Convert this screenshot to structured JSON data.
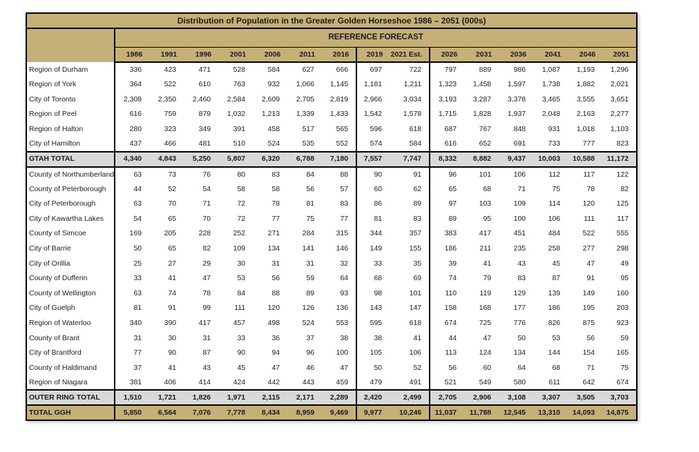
{
  "title": "Distribution of Population in the Greater Golden Horseshoe 1986 – 2051 (000s)",
  "forecast_header": "REFERENCE FORECAST",
  "years": [
    "1986",
    "1991",
    "1996",
    "2001",
    "2006",
    "2011",
    "2016",
    "2019",
    "2021 Est.",
    "2026",
    "2031",
    "2036",
    "2041",
    "2046",
    "2051"
  ],
  "colors": {
    "header_tan": "#C5B078",
    "total_gray": "#D9D9D9",
    "border": "#000000"
  },
  "sections": [
    {
      "name": "GTAH",
      "rows": [
        {
          "label": "Region of Durham",
          "values": [
            "336",
            "423",
            "471",
            "528",
            "584",
            "627",
            "666",
            "697",
            "722",
            "797",
            "889",
            "986",
            "1,087",
            "1,193",
            "1,296"
          ]
        },
        {
          "label": "Region of York",
          "values": [
            "364",
            "522",
            "610",
            "763",
            "932",
            "1,066",
            "1,145",
            "1,181",
            "1,211",
            "1,323",
            "1,458",
            "1,597",
            "1,738",
            "1,882",
            "2,021"
          ]
        },
        {
          "label": "City of Toronto",
          "values": [
            "2,308",
            "2,350",
            "2,460",
            "2,584",
            "2,609",
            "2,705",
            "2,819",
            "2,966",
            "3,034",
            "3,193",
            "3,287",
            "3,378",
            "3,465",
            "3,555",
            "3,651"
          ]
        },
        {
          "label": "Region of Peel",
          "values": [
            "616",
            "759",
            "879",
            "1,032",
            "1,213",
            "1,339",
            "1,433",
            "1,542",
            "1,578",
            "1,715",
            "1,828",
            "1,937",
            "2,048",
            "2,163",
            "2,277"
          ]
        },
        {
          "label": "Region of Halton",
          "values": [
            "280",
            "323",
            "349",
            "391",
            "458",
            "517",
            "565",
            "596",
            "618",
            "687",
            "767",
            "848",
            "931",
            "1,018",
            "1,103"
          ]
        },
        {
          "label": "City of Hamilton",
          "values": [
            "437",
            "466",
            "481",
            "510",
            "524",
            "535",
            "552",
            "574",
            "584",
            "616",
            "652",
            "691",
            "733",
            "777",
            "823"
          ]
        }
      ],
      "total": {
        "label": "GTAH TOTAL",
        "values": [
          "4,340",
          "4,843",
          "5,250",
          "5,807",
          "6,320",
          "6,788",
          "7,180",
          "7,557",
          "7,747",
          "8,332",
          "8,882",
          "9,437",
          "10,003",
          "10,588",
          "11,172"
        ]
      }
    },
    {
      "name": "Outer Ring",
      "rows": [
        {
          "label": "County of Northumberland",
          "values": [
            "63",
            "73",
            "76",
            "80",
            "83",
            "84",
            "88",
            "90",
            "91",
            "96",
            "101",
            "106",
            "112",
            "117",
            "122"
          ]
        },
        {
          "label": "County of Peterborough",
          "values": [
            "44",
            "52",
            "54",
            "58",
            "58",
            "56",
            "57",
            "60",
            "62",
            "65",
            "68",
            "71",
            "75",
            "78",
            "82"
          ]
        },
        {
          "label": "City of Peterborough",
          "values": [
            "63",
            "70",
            "71",
            "72",
            "78",
            "81",
            "83",
            "86",
            "89",
            "97",
            "103",
            "109",
            "114",
            "120",
            "125"
          ]
        },
        {
          "label": "City of Kawartha Lakes",
          "values": [
            "54",
            "65",
            "70",
            "72",
            "77",
            "75",
            "77",
            "81",
            "83",
            "89",
            "95",
            "100",
            "106",
            "111",
            "117"
          ]
        },
        {
          "label": "County of Simcoe",
          "values": [
            "169",
            "205",
            "228",
            "252",
            "271",
            "284",
            "315",
            "344",
            "357",
            "383",
            "417",
            "451",
            "484",
            "522",
            "555"
          ]
        },
        {
          "label": "City of Barrie",
          "values": [
            "50",
            "65",
            "82",
            "109",
            "134",
            "141",
            "146",
            "149",
            "155",
            "186",
            "211",
            "235",
            "258",
            "277",
            "298"
          ]
        },
        {
          "label": "City of Orillia",
          "values": [
            "25",
            "27",
            "29",
            "30",
            "31",
            "31",
            "32",
            "33",
            "35",
            "39",
            "41",
            "43",
            "45",
            "47",
            "49"
          ]
        },
        {
          "label": "County of Dufferin",
          "values": [
            "33",
            "41",
            "47",
            "53",
            "56",
            "59",
            "64",
            "68",
            "69",
            "74",
            "79",
            "83",
            "87",
            "91",
            "95"
          ]
        },
        {
          "label": "County of Wellington",
          "values": [
            "63",
            "74",
            "78",
            "84",
            "88",
            "89",
            "93",
            "98",
            "101",
            "110",
            "119",
            "129",
            "139",
            "149",
            "160"
          ]
        },
        {
          "label": "City of Guelph",
          "values": [
            "81",
            "91",
            "99",
            "111",
            "120",
            "126",
            "136",
            "143",
            "147",
            "158",
            "168",
            "177",
            "186",
            "195",
            "203"
          ]
        },
        {
          "label": "Region of Waterloo",
          "values": [
            "340",
            "390",
            "417",
            "457",
            "498",
            "524",
            "553",
            "595",
            "618",
            "674",
            "725",
            "776",
            "826",
            "875",
            "923"
          ]
        },
        {
          "label": "County of Brant",
          "values": [
            "31",
            "30",
            "31",
            "33",
            "36",
            "37",
            "38",
            "38",
            "41",
            "44",
            "47",
            "50",
            "53",
            "56",
            "59"
          ]
        },
        {
          "label": "City of Brantford",
          "values": [
            "77",
            "90",
            "87",
            "90",
            "94",
            "96",
            "100",
            "105",
            "106",
            "113",
            "124",
            "134",
            "144",
            "154",
            "165"
          ]
        },
        {
          "label": "County of Haldimand",
          "values": [
            "37",
            "41",
            "43",
            "45",
            "47",
            "46",
            "47",
            "50",
            "52",
            "56",
            "60",
            "64",
            "68",
            "71",
            "75"
          ]
        },
        {
          "label": "Region of Niagara",
          "values": [
            "381",
            "406",
            "414",
            "424",
            "442",
            "443",
            "459",
            "479",
            "491",
            "521",
            "549",
            "580",
            "611",
            "642",
            "674"
          ]
        }
      ],
      "total": {
        "label": "OUTER RING TOTAL",
        "values": [
          "1,510",
          "1,721",
          "1,826",
          "1,971",
          "2,115",
          "2,171",
          "2,289",
          "2,420",
          "2,499",
          "2,705",
          "2,906",
          "3,108",
          "3,307",
          "3,505",
          "3,703"
        ]
      }
    }
  ],
  "grand_total": {
    "label": "TOTAL GGH",
    "values": [
      "5,850",
      "6,564",
      "7,076",
      "7,778",
      "8,434",
      "8,959",
      "9,469",
      "9,977",
      "10,246",
      "11,037",
      "11,788",
      "12,545",
      "13,310",
      "14,093",
      "14,875"
    ]
  }
}
